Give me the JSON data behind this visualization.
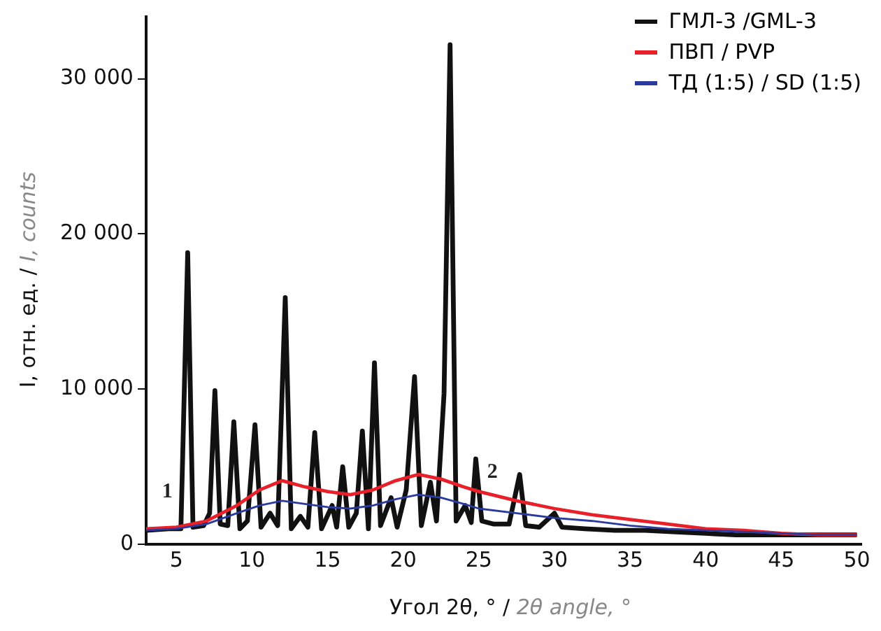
{
  "chart_data": {
    "type": "line",
    "xlabel": "Угол 2θ, ° / 2θ angle, °",
    "ylabel": "I, отн. ед. / I, counts",
    "xlim": [
      3,
      50.3
    ],
    "xticks": [
      5,
      10,
      15,
      20,
      25,
      30,
      35,
      40,
      45,
      50
    ],
    "ylim": [
      0,
      34000
    ],
    "yticks": [
      {
        "value": 0,
        "label": "0"
      },
      {
        "value": 10000,
        "label": "10 000"
      },
      {
        "value": 20000,
        "label": "20 000"
      },
      {
        "value": 30000,
        "label": "30 000"
      }
    ],
    "grid": false,
    "legend": "top right",
    "marker": "none",
    "line_style": "solid",
    "annotations": [
      "1",
      "2"
    ],
    "series": [
      {
        "name": "ГМЛ-3 /GML-3",
        "color": "#111111",
        "x": [
          3,
          4.5,
          5.3,
          5.75,
          6.1,
          6.8,
          7.2,
          7.55,
          7.9,
          8.4,
          8.8,
          9.2,
          9.7,
          10.2,
          10.6,
          11.2,
          11.7,
          12.2,
          12.6,
          13.2,
          13.7,
          14.15,
          14.6,
          15.3,
          15.6,
          16.0,
          16.4,
          16.9,
          17.3,
          17.7,
          18.1,
          18.5,
          19.2,
          19.6,
          20.2,
          20.75,
          21.2,
          21.8,
          22.2,
          22.7,
          23.1,
          23.5,
          24.1,
          24.5,
          24.8,
          25.2,
          26,
          27,
          27.7,
          28.1,
          29,
          30,
          30.5,
          32,
          34,
          36,
          38,
          40,
          42,
          45,
          48,
          50
        ],
        "values": [
          900,
          1000,
          1000,
          18800,
          1100,
          1200,
          2000,
          9900,
          1300,
          1200,
          7900,
          1000,
          1500,
          7700,
          1100,
          2000,
          1200,
          15900,
          1000,
          1800,
          1100,
          7200,
          1000,
          2500,
          1100,
          5000,
          1100,
          2000,
          7300,
          1000,
          11700,
          1200,
          3000,
          1100,
          3500,
          10800,
          1200,
          4000,
          1500,
          9700,
          32200,
          1500,
          2500,
          1400,
          5500,
          1500,
          1300,
          1300,
          4500,
          1200,
          1100,
          2000,
          1100,
          1000,
          900,
          900,
          800,
          700,
          600,
          600,
          600,
          600
        ]
      },
      {
        "name": "ПВП / PVP",
        "color": "#e8202a",
        "x": [
          3,
          5,
          7,
          9,
          10.5,
          12,
          13.5,
          15,
          16.5,
          18,
          19.5,
          21,
          22.5,
          24,
          25,
          27.5,
          30,
          32.5,
          35,
          37.5,
          40,
          42.5,
          45,
          47.5,
          50
        ],
        "values": [
          1000,
          1100,
          1500,
          2500,
          3500,
          4100,
          3700,
          3400,
          3200,
          3500,
          4100,
          4500,
          4200,
          3700,
          3400,
          2800,
          2300,
          1900,
          1600,
          1300,
          1000,
          900,
          700,
          600,
          600
        ]
      },
      {
        "name": "ТД (1:5) / SD (1:5)",
        "color": "#2b3a9e",
        "x": [
          3,
          5,
          7,
          9,
          10.5,
          12,
          13.5,
          15,
          16.5,
          18,
          19.5,
          21,
          22.5,
          24,
          25,
          27.5,
          30,
          32.5,
          35,
          37.5,
          40,
          42.5,
          45,
          47.5,
          50
        ],
        "values": [
          900,
          1000,
          1300,
          2000,
          2500,
          2800,
          2600,
          2400,
          2300,
          2500,
          2900,
          3200,
          3000,
          2600,
          2300,
          2000,
          1700,
          1500,
          1200,
          1000,
          900,
          800,
          700,
          600,
          600
        ]
      }
    ]
  }
}
